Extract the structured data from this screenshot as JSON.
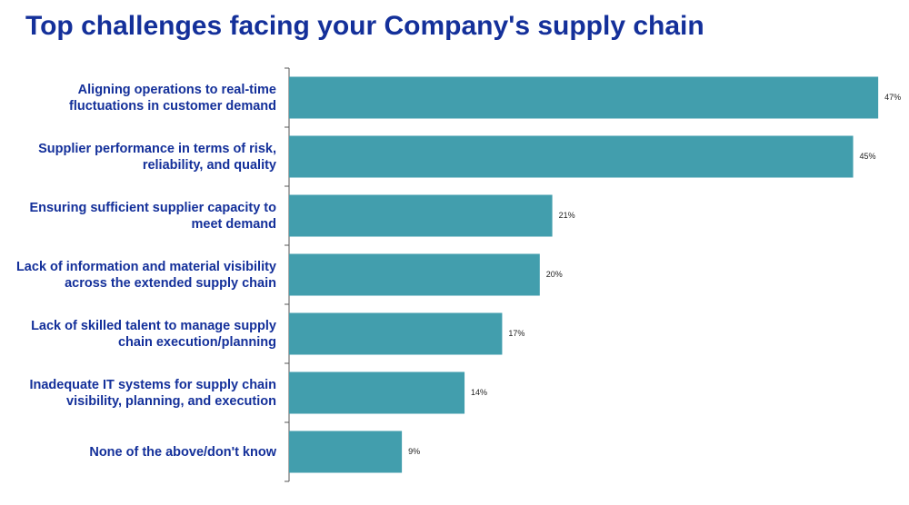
{
  "chart_data": {
    "type": "bar",
    "orientation": "horizontal",
    "title": "Top challenges facing your Company's supply chain",
    "categories": [
      "Aligning operations to real-time fluctuations in customer demand",
      "Supplier performance in terms of risk, reliability, and quality",
      "Ensuring sufficient supplier capacity to meet demand",
      "Lack of information and material visibility across the extended supply chain",
      "Lack of skilled talent to manage supply chain execution/planning",
      "Inadequate IT systems for supply chain visibility, planning, and execution",
      "None of the above/don't know"
    ],
    "values": [
      47,
      45,
      21,
      20,
      17,
      14,
      9
    ],
    "value_labels": [
      "47%",
      "45%",
      "21%",
      "20%",
      "17%",
      "14%",
      "9%"
    ],
    "color": "#429ead"
  }
}
